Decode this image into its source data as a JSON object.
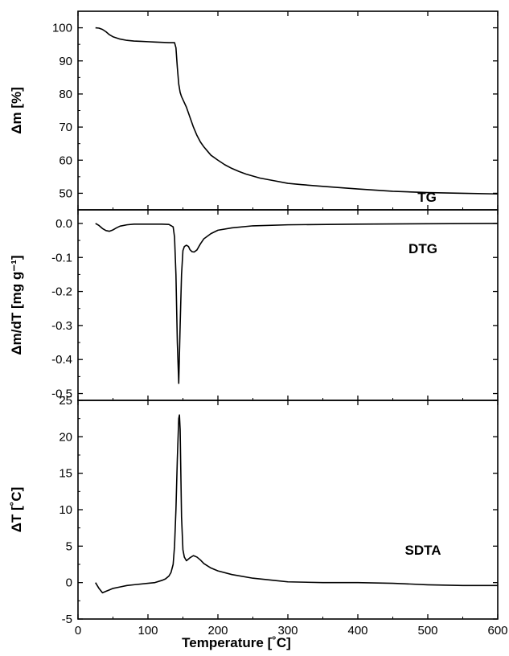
{
  "chart_data": {
    "type": "line",
    "xlabel": "Temperature [˚C]",
    "x_ticks": [
      "0",
      "100",
      "200",
      "300",
      "400",
      "500",
      "600"
    ],
    "xlim": [
      0,
      600
    ],
    "grid": false,
    "line_color": "#000000",
    "panels": [
      {
        "id": "tg",
        "label": "TG",
        "ylabel": "Δm  [%]",
        "ylim": [
          45,
          105
        ],
        "y_ticks": [
          "50",
          "60",
          "70",
          "80",
          "90",
          "100"
        ],
        "series": [
          {
            "x": [
              25,
              30,
              35,
              40,
              45,
              50,
              60,
              70,
              80,
              90,
              100,
              110,
              120,
              130,
              138,
              140,
              142,
              144,
              146,
              148,
              150,
              155,
              160,
              165,
              170,
              175,
              180,
              190,
              200,
              210,
              220,
              230,
              240,
              250,
              260,
              280,
              300,
              320,
              350,
              400,
              450,
              500,
              550,
              600
            ],
            "y": [
              100,
              99.9,
              99.5,
              98.8,
              97.9,
              97.3,
              96.6,
              96.2,
              96.0,
              95.9,
              95.8,
              95.7,
              95.6,
              95.5,
              95.5,
              94.0,
              88.0,
              83.0,
              80.5,
              79.2,
              78.3,
              76.0,
              73.0,
              70.0,
              67.5,
              65.5,
              64.0,
              61.5,
              60.0,
              58.6,
              57.5,
              56.6,
              55.8,
              55.2,
              54.6,
              53.8,
              53.0,
              52.6,
              52.1,
              51.3,
              50.6,
              50.2,
              50.0,
              49.8
            ]
          }
        ]
      },
      {
        "id": "dtg",
        "label": "DTG",
        "ylabel": "Δm/dT  [mg g⁻¹]",
        "ylim": [
          -0.52,
          0.04
        ],
        "y_ticks": [
          "0.0",
          "-0.1",
          "-0.2",
          "-0.3",
          "-0.4",
          "-0.5"
        ],
        "series": [
          {
            "x": [
              25,
              30,
              35,
              40,
              45,
              50,
              55,
              60,
              70,
              80,
              100,
              120,
              130,
              136,
              138,
              140,
              142,
              144,
              146,
              148,
              150,
              152,
              155,
              158,
              160,
              163,
              166,
              170,
              175,
              180,
              190,
              200,
              220,
              250,
              300,
              400,
              500,
              600
            ],
            "y": [
              0.0,
              -0.006,
              -0.015,
              -0.021,
              -0.023,
              -0.019,
              -0.013,
              -0.008,
              -0.004,
              -0.002,
              -0.002,
              -0.002,
              -0.003,
              -0.01,
              -0.04,
              -0.15,
              -0.35,
              -0.47,
              -0.3,
              -0.15,
              -0.08,
              -0.068,
              -0.064,
              -0.068,
              -0.077,
              -0.083,
              -0.084,
              -0.078,
              -0.06,
              -0.045,
              -0.03,
              -0.02,
              -0.013,
              -0.007,
              -0.004,
              -0.002,
              -0.001,
              0.0
            ]
          }
        ]
      },
      {
        "id": "sdta",
        "label": "SDTA",
        "ylabel": "ΔT  [˚C]",
        "ylim": [
          -5,
          25
        ],
        "y_ticks": [
          "-5",
          "0",
          "5",
          "10",
          "15",
          "20",
          "25"
        ],
        "series": [
          {
            "x": [
              25,
              30,
              35,
              40,
              45,
              50,
              60,
              70,
              80,
              100,
              110,
              120,
              125,
              130,
              133,
              136,
              138,
              140,
              142,
              144,
              145,
              146,
              147,
              148,
              150,
              152,
              155,
              160,
              165,
              170,
              175,
              180,
              190,
              200,
              220,
              250,
              280,
              300,
              350,
              400,
              450,
              500,
              550,
              600
            ],
            "y": [
              0,
              -0.8,
              -1.4,
              -1.2,
              -1.0,
              -0.8,
              -0.6,
              -0.4,
              -0.3,
              -0.1,
              0.0,
              0.3,
              0.5,
              0.9,
              1.4,
              2.5,
              5.0,
              10.0,
              17.0,
              22.5,
              23.0,
              21.0,
              15.0,
              9.0,
              4.5,
              3.5,
              3.0,
              3.4,
              3.7,
              3.5,
              3.1,
              2.6,
              2.0,
              1.6,
              1.1,
              0.6,
              0.3,
              0.1,
              0.0,
              0.0,
              -0.1,
              -0.3,
              -0.4,
              -0.4
            ]
          }
        ]
      }
    ]
  }
}
